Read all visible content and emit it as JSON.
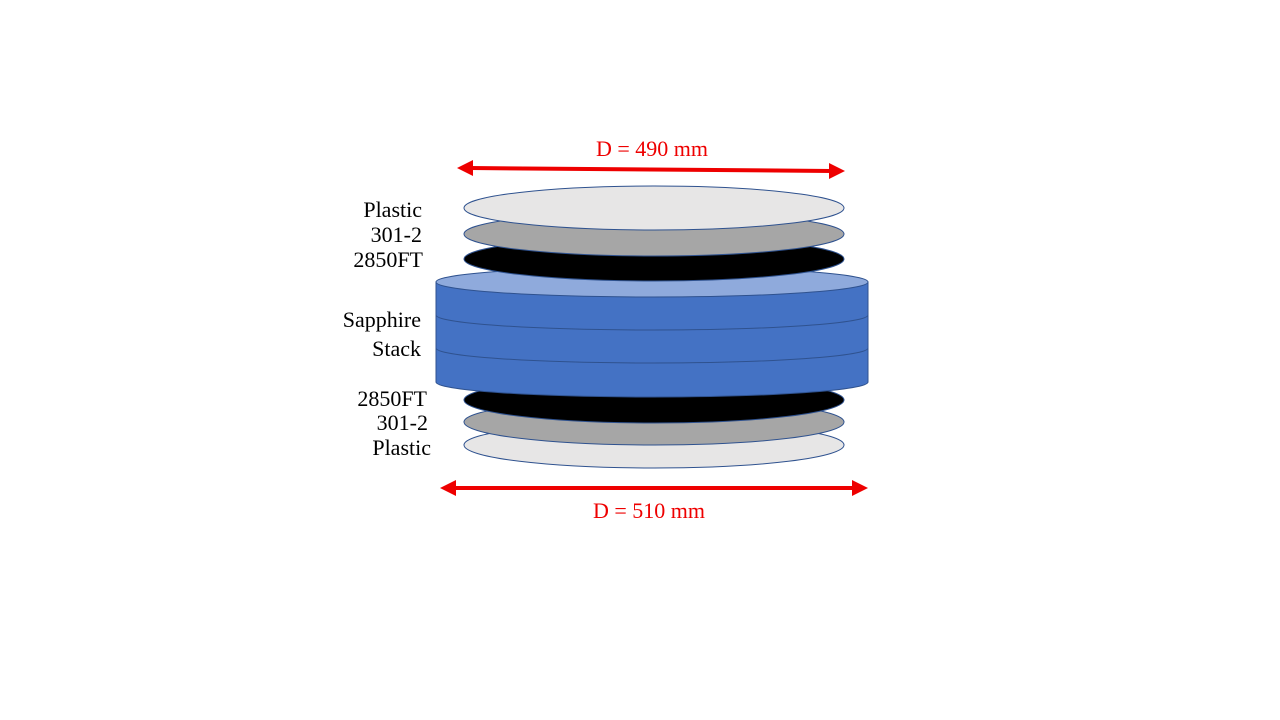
{
  "colors": {
    "dimension": "#ee0000",
    "plastic": "#e7e6e6",
    "layer_301_2": "#a6a6a6",
    "layer_2850ft": "#000000",
    "sapphire_side": "#4472c4",
    "sapphire_top": "#8faadc",
    "outline": "#2f528f"
  },
  "dimensions": {
    "top": "D = 490 mm",
    "bottom": "D = 510 mm"
  },
  "labels": {
    "top_plastic": "Plastic",
    "top_301_2": "301-2",
    "top_2850ft": "2850FT",
    "sapphire_line1": "Sapphire",
    "sapphire_line2": "Stack",
    "bottom_2850ft": "2850FT",
    "bottom_301_2": "301-2",
    "bottom_plastic": "Plastic"
  }
}
